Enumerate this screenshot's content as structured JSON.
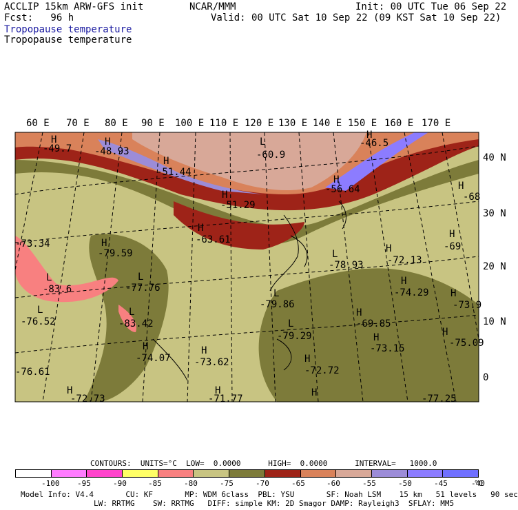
{
  "header": {
    "left1": "ACCLIP 15km ARW-GFS init",
    "left2": "Fcst:   96 h",
    "center": "NCAR/MMM",
    "right1": "Init: 00 UTC Tue 06 Sep 22",
    "right2": "Valid: 00 UTC Sat 10 Sep 22 (09 KST Sat 10 Sep 22)",
    "field1": "Tropopause temperature",
    "field2": "Tropopause temperature"
  },
  "lon_labels": [
    "60 E",
    "70 E",
    "80 E",
    "90 E",
    "100 E",
    "110 E",
    "120 E",
    "130 E",
    "140 E",
    "150 E",
    "160 E",
    "170 E"
  ],
  "lat_labels": [
    "40 N",
    "30 N",
    "20 N",
    "10 N",
    "0"
  ],
  "map_labels": [
    {
      "t": "-49.7",
      "id": "l1"
    },
    {
      "t": "-48.93",
      "id": "l2"
    },
    {
      "t": "-60.9",
      "id": "l3"
    },
    {
      "t": "-46.5",
      "id": "l4"
    },
    {
      "t": "-51.44",
      "id": "l5"
    },
    {
      "t": "-56.64",
      "id": "l6"
    },
    {
      "t": "-68",
      "id": "l7"
    },
    {
      "t": "-51.29",
      "id": "l8"
    },
    {
      "t": "-63.61",
      "id": "l9"
    },
    {
      "t": "-73.34",
      "id": "l10"
    },
    {
      "t": "-79.59",
      "id": "l11"
    },
    {
      "t": "-78.93",
      "id": "l12"
    },
    {
      "t": "-72.13",
      "id": "l13"
    },
    {
      "t": "-69",
      "id": "l14"
    },
    {
      "t": "-83.6",
      "id": "l15"
    },
    {
      "t": "-77.76",
      "id": "l16"
    },
    {
      "t": "-79.86",
      "id": "l17"
    },
    {
      "t": "-74.29",
      "id": "l18"
    },
    {
      "t": "-73.9",
      "id": "l19"
    },
    {
      "t": "-76.52",
      "id": "l20"
    },
    {
      "t": "-83.42",
      "id": "l21"
    },
    {
      "t": "-79.29",
      "id": "l22"
    },
    {
      "t": "-69.85",
      "id": "l23"
    },
    {
      "t": "-75.09",
      "id": "l24"
    },
    {
      "t": "-74.07",
      "id": "l25"
    },
    {
      "t": "-73.62",
      "id": "l26"
    },
    {
      "t": "-72.72",
      "id": "l27"
    },
    {
      "t": "-73.15",
      "id": "l28"
    },
    {
      "t": "-76.61",
      "id": "l29"
    },
    {
      "t": "-72.73",
      "id": "l30"
    },
    {
      "t": "-71.77",
      "id": "l31"
    },
    {
      "t": "-77.25",
      "id": "l32"
    }
  ],
  "contours_line": "CONTOURS:  UNITS=°C  LOW=  0.0000      HIGH=  0.0000      INTERVAL=   1000.0",
  "legend": {
    "colors": [
      "#ffffff",
      "#ff7cff",
      "#ff44cc",
      "#ffff66",
      "#f88080",
      "#c8c482",
      "#7d7b3a",
      "#9e2318",
      "#d9825a",
      "#d8a898",
      "#9c8cd8",
      "#8c7cff",
      "#7070ff"
    ],
    "ticks": [
      "-100",
      "-95",
      "-90",
      "-85",
      "-80",
      "-75",
      "-70",
      "-65",
      "-60",
      "-55",
      "-50",
      "-45",
      "-40",
      "°C"
    ]
  },
  "footer": {
    "line1": "Model Info: V4.4       CU: KF       MP: WDM 6class  PBL: YSU       SF: Noah LSM    15 km   51 levels   90 sec",
    "line2": "                LW: RRTMG    SW: RRTMG   DIFF: simple KM: 2D Smagor DAMP: Rayleigh3  SFLAY: MM5"
  }
}
